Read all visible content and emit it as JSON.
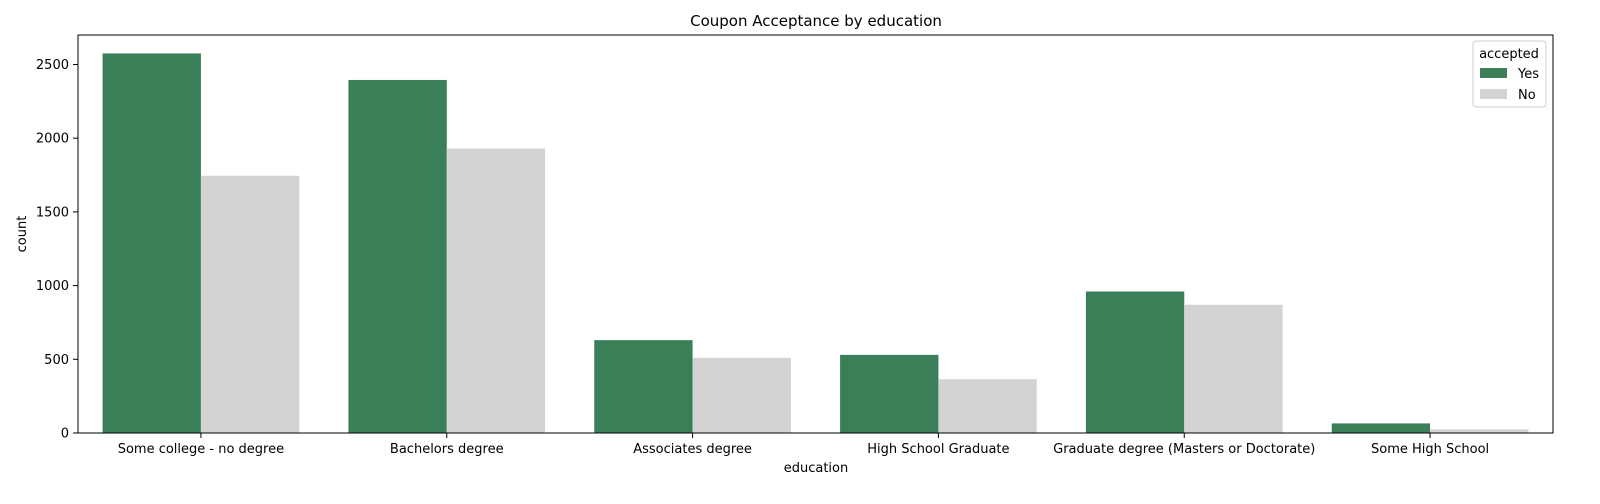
{
  "chart_data": {
    "type": "bar",
    "title": "Coupon Acceptance by education",
    "xlabel": "education",
    "ylabel": "count",
    "categories": [
      "Some college - no degree",
      "Bachelors degree",
      "Associates degree",
      "High School Graduate",
      "Graduate degree (Masters or Doctorate)",
      "Some High School"
    ],
    "series": [
      {
        "name": "Yes",
        "color": "#3a7f58",
        "values": [
          2575,
          2395,
          630,
          530,
          960,
          65
        ]
      },
      {
        "name": "No",
        "color": "#d3d3d3",
        "values": [
          1745,
          1930,
          510,
          365,
          870,
          25
        ]
      }
    ],
    "ylim": [
      0,
      2700
    ],
    "yticks": [
      0,
      500,
      1000,
      1500,
      2000,
      2500
    ],
    "grid": false,
    "legend": {
      "title": "accepted",
      "placement": "top-right"
    }
  }
}
